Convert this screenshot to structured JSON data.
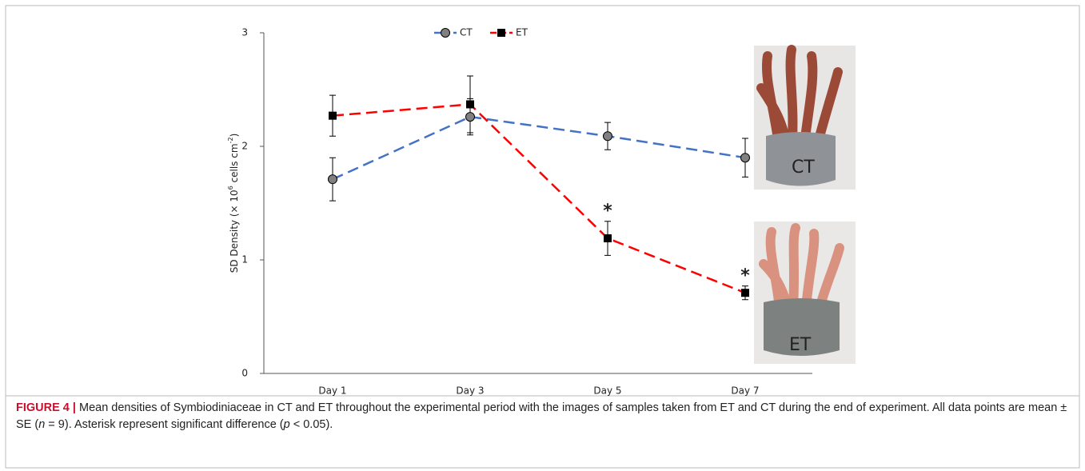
{
  "chart_data": {
    "type": "line",
    "ylabel_parts": [
      "SD Density (× 10",
      "6",
      " cells cm",
      "-2",
      ")"
    ],
    "categories": [
      "Day 1",
      "Day 3",
      "Day 5",
      "Day 7"
    ],
    "series": [
      {
        "name": "CT",
        "color": "#4472c4",
        "marker": "circle",
        "marker_color": "#808080",
        "values": [
          1.71,
          2.26,
          2.09,
          1.9
        ],
        "errors": [
          0.19,
          0.16,
          0.12,
          0.17
        ]
      },
      {
        "name": "ET",
        "color": "#ff0000",
        "marker": "square",
        "marker_color": "#000000",
        "values": [
          2.27,
          2.37,
          1.19,
          0.71
        ],
        "errors": [
          0.18,
          0.25,
          0.15,
          0.06
        ],
        "significance_labels": [
          null,
          null,
          "*",
          "*"
        ]
      }
    ],
    "ylim": [
      0,
      3
    ],
    "yticks": [
      0,
      1,
      2,
      3
    ],
    "grid": false,
    "legend": "top",
    "caption_label": "FIGURE 4 |",
    "caption_parts": [
      "Mean densities of Symbiodiniaceae in CT and ET throughout the experimental period with the images of samples taken from ET and CT during the end of experiment. All data points are mean ± SE (",
      "n",
      " = 9). Asterisk represent significant difference (",
      "p",
      " < 0.05)."
    ]
  }
}
